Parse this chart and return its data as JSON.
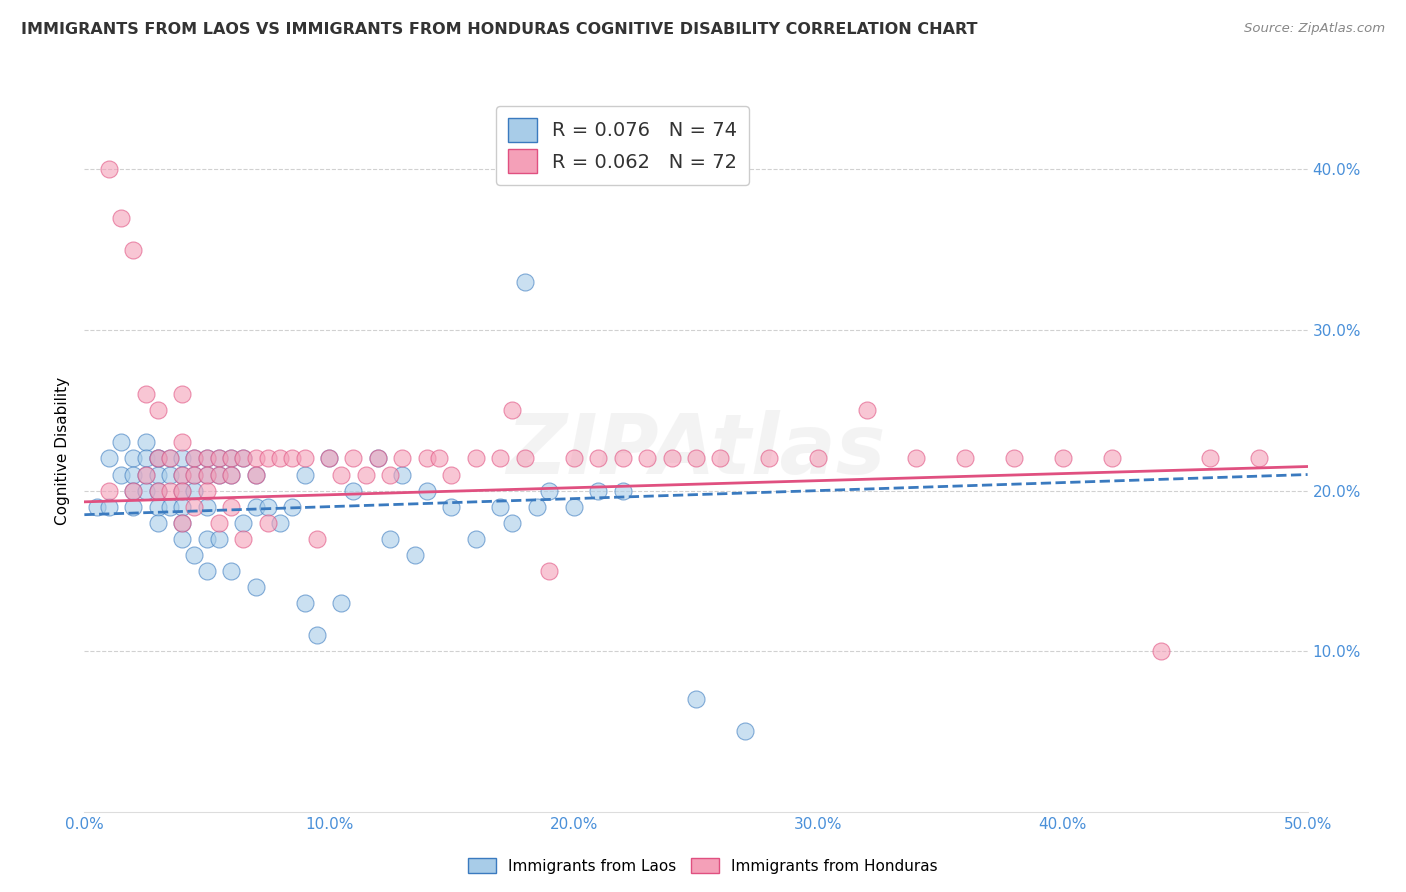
{
  "title": "IMMIGRANTS FROM LAOS VS IMMIGRANTS FROM HONDURAS COGNITIVE DISABILITY CORRELATION CHART",
  "source": "Source: ZipAtlas.com",
  "ylabel": "Cognitive Disability",
  "xlim": [
    0.0,
    0.5
  ],
  "ylim": [
    0.0,
    0.45
  ],
  "xticks": [
    0.0,
    0.1,
    0.2,
    0.3,
    0.4,
    0.5
  ],
  "yticks": [
    0.1,
    0.2,
    0.3,
    0.4
  ],
  "xtick_labels": [
    "0.0%",
    "10.0%",
    "20.0%",
    "30.0%",
    "40.0%",
    "50.0%"
  ],
  "ytick_labels": [
    "10.0%",
    "20.0%",
    "30.0%",
    "40.0%"
  ],
  "color_laos": "#a8cce8",
  "color_honduras": "#f4a0b8",
  "trendline_laos_color": "#3a7abf",
  "trendline_honduras_color": "#e05080",
  "R_laos": 0.076,
  "N_laos": 74,
  "R_honduras": 0.062,
  "N_honduras": 72,
  "background_color": "#ffffff",
  "watermark": "ZIPAtlas",
  "laos_x": [
    0.005,
    0.01,
    0.01,
    0.015,
    0.015,
    0.02,
    0.02,
    0.02,
    0.02,
    0.025,
    0.025,
    0.025,
    0.025,
    0.03,
    0.03,
    0.03,
    0.03,
    0.03,
    0.03,
    0.035,
    0.035,
    0.035,
    0.04,
    0.04,
    0.04,
    0.04,
    0.04,
    0.04,
    0.045,
    0.045,
    0.045,
    0.045,
    0.05,
    0.05,
    0.05,
    0.05,
    0.05,
    0.055,
    0.055,
    0.055,
    0.06,
    0.06,
    0.06,
    0.065,
    0.065,
    0.07,
    0.07,
    0.07,
    0.075,
    0.08,
    0.085,
    0.09,
    0.09,
    0.095,
    0.1,
    0.105,
    0.11,
    0.12,
    0.125,
    0.13,
    0.135,
    0.14,
    0.15,
    0.16,
    0.17,
    0.175,
    0.18,
    0.185,
    0.19,
    0.2,
    0.21,
    0.22,
    0.25,
    0.27
  ],
  "laos_y": [
    0.19,
    0.22,
    0.19,
    0.23,
    0.21,
    0.22,
    0.21,
    0.2,
    0.19,
    0.23,
    0.22,
    0.21,
    0.2,
    0.22,
    0.22,
    0.21,
    0.2,
    0.19,
    0.18,
    0.22,
    0.21,
    0.19,
    0.22,
    0.21,
    0.2,
    0.19,
    0.18,
    0.17,
    0.22,
    0.21,
    0.2,
    0.16,
    0.22,
    0.21,
    0.19,
    0.17,
    0.15,
    0.22,
    0.21,
    0.17,
    0.22,
    0.21,
    0.15,
    0.22,
    0.18,
    0.21,
    0.19,
    0.14,
    0.19,
    0.18,
    0.19,
    0.21,
    0.13,
    0.11,
    0.22,
    0.13,
    0.2,
    0.22,
    0.17,
    0.21,
    0.16,
    0.2,
    0.19,
    0.17,
    0.19,
    0.18,
    0.33,
    0.19,
    0.2,
    0.19,
    0.2,
    0.2,
    0.07,
    0.05
  ],
  "honduras_x": [
    0.01,
    0.01,
    0.015,
    0.02,
    0.02,
    0.025,
    0.025,
    0.03,
    0.03,
    0.03,
    0.035,
    0.035,
    0.04,
    0.04,
    0.04,
    0.04,
    0.04,
    0.045,
    0.045,
    0.045,
    0.05,
    0.05,
    0.05,
    0.055,
    0.055,
    0.055,
    0.06,
    0.06,
    0.06,
    0.065,
    0.065,
    0.07,
    0.07,
    0.075,
    0.075,
    0.08,
    0.085,
    0.09,
    0.095,
    0.1,
    0.105,
    0.11,
    0.115,
    0.12,
    0.125,
    0.13,
    0.14,
    0.145,
    0.15,
    0.16,
    0.17,
    0.175,
    0.18,
    0.19,
    0.2,
    0.21,
    0.22,
    0.23,
    0.24,
    0.25,
    0.26,
    0.28,
    0.3,
    0.32,
    0.34,
    0.36,
    0.38,
    0.4,
    0.42,
    0.44,
    0.46,
    0.48
  ],
  "honduras_y": [
    0.4,
    0.2,
    0.37,
    0.35,
    0.2,
    0.26,
    0.21,
    0.25,
    0.22,
    0.2,
    0.22,
    0.2,
    0.26,
    0.23,
    0.21,
    0.2,
    0.18,
    0.22,
    0.21,
    0.19,
    0.22,
    0.21,
    0.2,
    0.22,
    0.21,
    0.18,
    0.22,
    0.21,
    0.19,
    0.22,
    0.17,
    0.22,
    0.21,
    0.22,
    0.18,
    0.22,
    0.22,
    0.22,
    0.17,
    0.22,
    0.21,
    0.22,
    0.21,
    0.22,
    0.21,
    0.22,
    0.22,
    0.22,
    0.21,
    0.22,
    0.22,
    0.25,
    0.22,
    0.15,
    0.22,
    0.22,
    0.22,
    0.22,
    0.22,
    0.22,
    0.22,
    0.22,
    0.22,
    0.25,
    0.22,
    0.22,
    0.22,
    0.22,
    0.22,
    0.1,
    0.22,
    0.22
  ]
}
